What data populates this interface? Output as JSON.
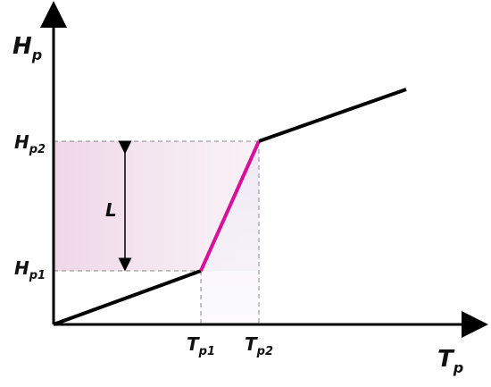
{
  "axes": {
    "y": {
      "main": "H",
      "sub": "p"
    },
    "x": {
      "main": "T",
      "sub": "p"
    }
  },
  "levels": {
    "h1": {
      "main": "H",
      "sub": "p1"
    },
    "h2": {
      "main": "H",
      "sub": "p2"
    },
    "t1": {
      "main": "T",
      "sub": "p1"
    },
    "t2": {
      "main": "T",
      "sub": "p2"
    }
  },
  "span_label": "L"
}
